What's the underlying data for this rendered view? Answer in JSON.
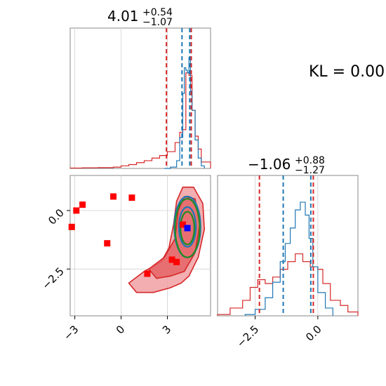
{
  "chart_data": {
    "type": "corner",
    "kl_label": "KL = 0.00",
    "param1": {
      "title_main": "4.01",
      "title_sup": "+0.54",
      "title_sub": "−1.07",
      "xlim": [
        -3.3,
        5.8
      ],
      "ticks": [
        "−3",
        "0",
        "3"
      ],
      "tick_values": [
        -3,
        0,
        3
      ],
      "red_lines": [
        2.94,
        4.55
      ],
      "blue_lines": [
        3.95,
        4.45
      ],
      "hist_red": [
        [
          -3.3,
          0.003
        ],
        [
          -2.5,
          0.005
        ],
        [
          -1.5,
          0.006
        ],
        [
          -0.5,
          0.01
        ],
        [
          0,
          0.02
        ],
        [
          0.5,
          0.03
        ],
        [
          1.0,
          0.045
        ],
        [
          1.5,
          0.06
        ],
        [
          2.0,
          0.08
        ],
        [
          2.5,
          0.1
        ],
        [
          3.0,
          0.13
        ],
        [
          3.5,
          0.2
        ],
        [
          3.8,
          0.28
        ],
        [
          4.0,
          0.3
        ],
        [
          4.2,
          0.74
        ],
        [
          4.4,
          0.72
        ],
        [
          4.6,
          0.45
        ],
        [
          4.8,
          0.25
        ],
        [
          5.0,
          0.15
        ],
        [
          5.2,
          0.05
        ],
        [
          5.8,
          0.0
        ]
      ],
      "hist_blue": [
        [
          2.8,
          0.0
        ],
        [
          3.2,
          0.01
        ],
        [
          3.6,
          0.06
        ],
        [
          3.8,
          0.24
        ],
        [
          4.0,
          0.58
        ],
        [
          4.1,
          0.78
        ],
        [
          4.2,
          0.76
        ],
        [
          4.3,
          0.74
        ],
        [
          4.4,
          0.86
        ],
        [
          4.5,
          0.6
        ],
        [
          4.6,
          0.45
        ],
        [
          4.8,
          0.22
        ],
        [
          5.0,
          0.08
        ],
        [
          5.2,
          0.02
        ],
        [
          5.4,
          0.0
        ]
      ]
    },
    "param2": {
      "title_main": "−1.06",
      "title_sup": "+0.88",
      "title_sub": "−1.27",
      "xlim": [
        -4.0,
        1.6
      ],
      "ticks": [
        "−2.5",
        "0.0"
      ],
      "tick_values": [
        -2.5,
        0.0
      ],
      "red_lines": [
        -2.33,
        -0.18
      ],
      "blue_lines": [
        -1.38,
        -0.28
      ],
      "hist_red": [
        [
          -4.0,
          0.01
        ],
        [
          -3.5,
          0.06
        ],
        [
          -3.0,
          0.12
        ],
        [
          -2.7,
          0.22
        ],
        [
          -2.4,
          0.28
        ],
        [
          -2.1,
          0.25
        ],
        [
          -1.8,
          0.3
        ],
        [
          -1.5,
          0.36
        ],
        [
          -1.2,
          0.42
        ],
        [
          -0.9,
          0.48
        ],
        [
          -0.6,
          0.42
        ],
        [
          -0.3,
          0.38
        ],
        [
          0.0,
          0.36
        ],
        [
          0.2,
          0.25
        ],
        [
          0.5,
          0.12
        ],
        [
          0.9,
          0.08
        ],
        [
          1.2,
          0.03
        ],
        [
          1.6,
          0.0
        ]
      ],
      "hist_blue": [
        [
          -2.9,
          0.01
        ],
        [
          -2.5,
          0.05
        ],
        [
          -2.1,
          0.14
        ],
        [
          -1.8,
          0.26
        ],
        [
          -1.5,
          0.42
        ],
        [
          -1.3,
          0.56
        ],
        [
          -1.1,
          0.68
        ],
        [
          -0.9,
          0.82
        ],
        [
          -0.7,
          0.88
        ],
        [
          -0.5,
          0.78
        ],
        [
          -0.35,
          0.6
        ],
        [
          -0.2,
          0.38
        ],
        [
          0.0,
          0.18
        ],
        [
          0.3,
          0.06
        ],
        [
          0.6,
          0.0
        ]
      ]
    },
    "joint": {
      "ylim": [
        -4.5,
        1.5
      ],
      "yticks": [
        "0.0",
        "−2.5"
      ],
      "ytick_values": [
        0.0,
        -2.5
      ],
      "red_squares": [
        [
          -3.2,
          -0.7
        ],
        [
          -2.9,
          0.0
        ],
        [
          -2.5,
          0.25
        ],
        [
          -0.5,
          0.6
        ],
        [
          0.7,
          0.55
        ],
        [
          -0.9,
          -1.4
        ],
        [
          1.7,
          -2.7
        ],
        [
          3.3,
          -2.1
        ],
        [
          4.0,
          -0.6
        ],
        [
          3.6,
          -2.2
        ]
      ],
      "blue_square": [
        4.3,
        -0.75
      ],
      "red_contour_outer": [
        [
          0.5,
          -3.1
        ],
        [
          1.5,
          -2.6
        ],
        [
          2.6,
          -2.2
        ],
        [
          3.1,
          -1.6
        ],
        [
          3.4,
          -0.6
        ],
        [
          3.6,
          0.4
        ],
        [
          4.0,
          1.0
        ],
        [
          4.7,
          1.0
        ],
        [
          5.3,
          0.3
        ],
        [
          5.4,
          -0.8
        ],
        [
          5.0,
          -2.0
        ],
        [
          4.4,
          -2.8
        ],
        [
          3.9,
          -3.1
        ],
        [
          3.2,
          -3.3
        ],
        [
          2.1,
          -3.5
        ],
        [
          1.0,
          -3.5
        ]
      ],
      "red_contour_inner": [
        [
          1.8,
          -2.5
        ],
        [
          2.8,
          -2.0
        ],
        [
          3.5,
          -1.2
        ],
        [
          3.7,
          0.0
        ],
        [
          4.1,
          0.6
        ],
        [
          4.8,
          0.5
        ],
        [
          5.1,
          -0.6
        ],
        [
          4.8,
          -1.8
        ],
        [
          4.1,
          -2.6
        ],
        [
          3.2,
          -2.8
        ],
        [
          2.3,
          -2.9
        ]
      ],
      "ellipses": [
        {
          "cx": 4.3,
          "cy": -0.7,
          "rx": 0.85,
          "ry": 1.3,
          "color": "#1f77b4"
        },
        {
          "cx": 4.3,
          "cy": -0.7,
          "rx": 0.55,
          "ry": 0.85,
          "color": "#1f77b4"
        },
        {
          "cx": 4.3,
          "cy": -0.75,
          "rx": 0.8,
          "ry": 1.25,
          "color": "#228b22"
        },
        {
          "cx": 4.3,
          "cy": -0.75,
          "rx": 0.45,
          "ry": 0.7,
          "color": "#228b22"
        }
      ]
    },
    "colors": {
      "red": "#d62728",
      "blue": "#1f77b4",
      "green": "#228b22"
    }
  }
}
